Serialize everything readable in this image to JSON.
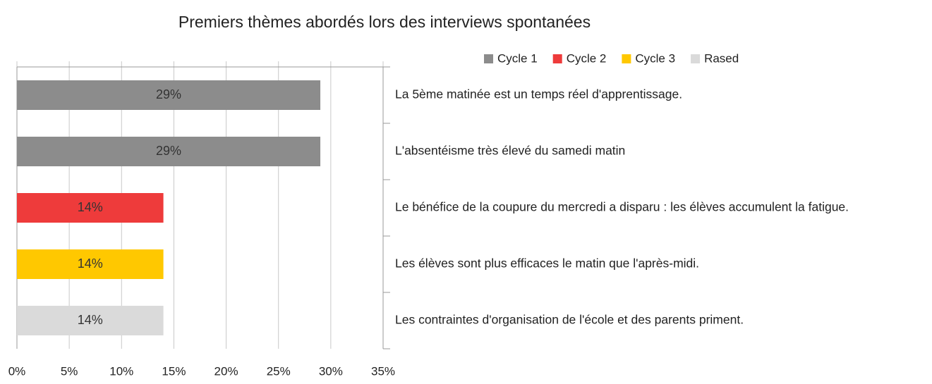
{
  "chart_data": {
    "type": "bar",
    "orientation": "horizontal",
    "title": "Premiers thèmes abordés lors des interviews spontanées",
    "categories": [
      "La 5ème matinée est un temps réel d'apprentissage.",
      "L'absentéisme très élevé du samedi matin",
      "Le bénéfice de la coupure du mercredi a disparu : les élèves accumulent la fatigue.",
      "Les élèves sont plus efficaces le matin que l'après-midi.",
      "Les contraintes d'organisation de l'école et des parents priment."
    ],
    "series": [
      {
        "name": "Cycle 1",
        "color": "#8c8c8c",
        "values": [
          29,
          29,
          null,
          null,
          null
        ],
        "value_labels": [
          "29%",
          "29%",
          null,
          null,
          null
        ]
      },
      {
        "name": "Cycle 2",
        "color": "#ee3b3b",
        "values": [
          null,
          null,
          14,
          null,
          null
        ],
        "value_labels": [
          null,
          null,
          "14%",
          null,
          null
        ]
      },
      {
        "name": "Cycle 3",
        "color": "#ffc800",
        "values": [
          null,
          null,
          null,
          14,
          null
        ],
        "value_labels": [
          null,
          null,
          null,
          "14%",
          null
        ]
      },
      {
        "name": "Rased",
        "color": "#dadada",
        "values": [
          null,
          null,
          null,
          null,
          14
        ],
        "value_labels": [
          null,
          null,
          null,
          null,
          "14%"
        ]
      }
    ],
    "xlim": [
      0,
      35
    ],
    "xticks": [
      {
        "value": 0,
        "label": "0%"
      },
      {
        "value": 5,
        "label": "5%"
      },
      {
        "value": 10,
        "label": "10%"
      },
      {
        "value": 15,
        "label": "15%"
      },
      {
        "value": 20,
        "label": "20%"
      },
      {
        "value": 25,
        "label": "25%"
      },
      {
        "value": 30,
        "label": "30%"
      },
      {
        "value": 35,
        "label": "35%"
      }
    ],
    "grid": true,
    "legend": "top-right"
  }
}
